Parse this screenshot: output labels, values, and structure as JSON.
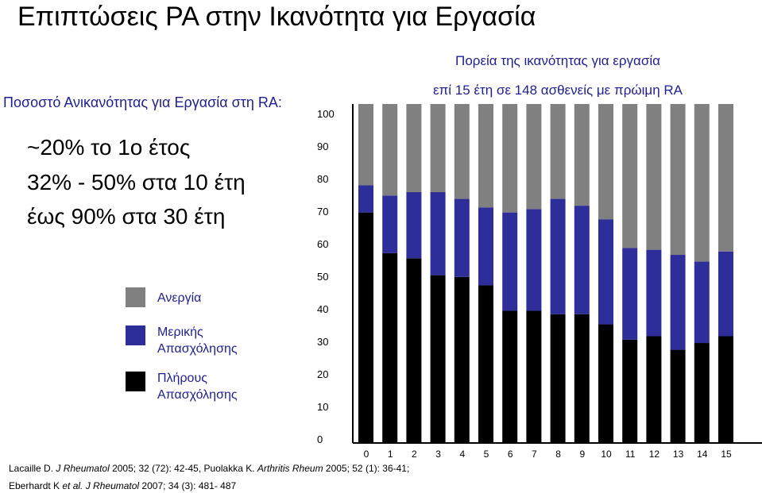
{
  "slide": {
    "title": "Επιπτώσεις ΡΑ στην Ικανότητα για Εργασία",
    "subheading": "Ποσοστό Ανικανότητας για Εργασία στη RA:",
    "stats": [
      "~20% το 1ο έτος",
      "32% - 50% στα 10 έτη",
      "έως 90% στα 30 έτη"
    ],
    "references": [
      {
        "authors": "Lacaille D. ",
        "journal": "J Rheumatol",
        "rest": " 2005; 32 (72): 42-45, Puolakka K. ",
        "journal2": "Arthritis Rheum",
        "rest2": " 2005; 52 (1): 36-41;"
      },
      {
        "authors": "Eberhardt K ",
        "etal": "et al.",
        "journal": " J Rheumatol",
        "rest": " 2007; 34 (3): 481- 487"
      }
    ]
  },
  "legend": [
    {
      "label_line1": "Ανεργία",
      "label_line2": "",
      "color": "#808080"
    },
    {
      "label_line1": "Μερικής",
      "label_line2": "Απασχόλησης",
      "color": "#2e2e9a"
    },
    {
      "label_line1": "Πλήρους",
      "label_line2": "Απασχόλησης",
      "color": "#000000"
    }
  ],
  "chart_data": {
    "type": "bar",
    "stacked": true,
    "title_line1": "Πορεία της ικανότητας για εργασία",
    "title_line2": "επί 15 έτη σε 148 ασθενείς με πρώιμη RA",
    "categories": [
      "0",
      "1",
      "2",
      "3",
      "4",
      "5",
      "6",
      "7",
      "8",
      "9",
      "10",
      "11",
      "12",
      "13",
      "14",
      "15"
    ],
    "y_ticks": [
      "100",
      "90",
      "80",
      "70",
      "60",
      "50",
      "40",
      "30",
      "20",
      "10",
      "0"
    ],
    "ylim": [
      0,
      100
    ],
    "series": [
      {
        "name": "Πλήρους Απασχόλησης",
        "color": "#000000",
        "values": [
          68,
          56,
          54.5,
          49.5,
          49,
          46.5,
          39,
          39,
          38,
          38,
          35,
          30.5,
          31.5,
          27.5,
          29.5,
          31.5
        ]
      },
      {
        "name": "Μερικής Απασχόλησης",
        "color": "#2e2e9a",
        "values": [
          8,
          17,
          19.5,
          24.5,
          23,
          23,
          29,
          30,
          34,
          32,
          31,
          27,
          25.5,
          28,
          24,
          25
        ]
      },
      {
        "name": "Ανεργία",
        "color": "#808080",
        "values": [
          24,
          27,
          26,
          26,
          28,
          30.5,
          32,
          31,
          28,
          30,
          34,
          42.5,
          43,
          44.5,
          46.5,
          43.5
        ]
      }
    ]
  }
}
